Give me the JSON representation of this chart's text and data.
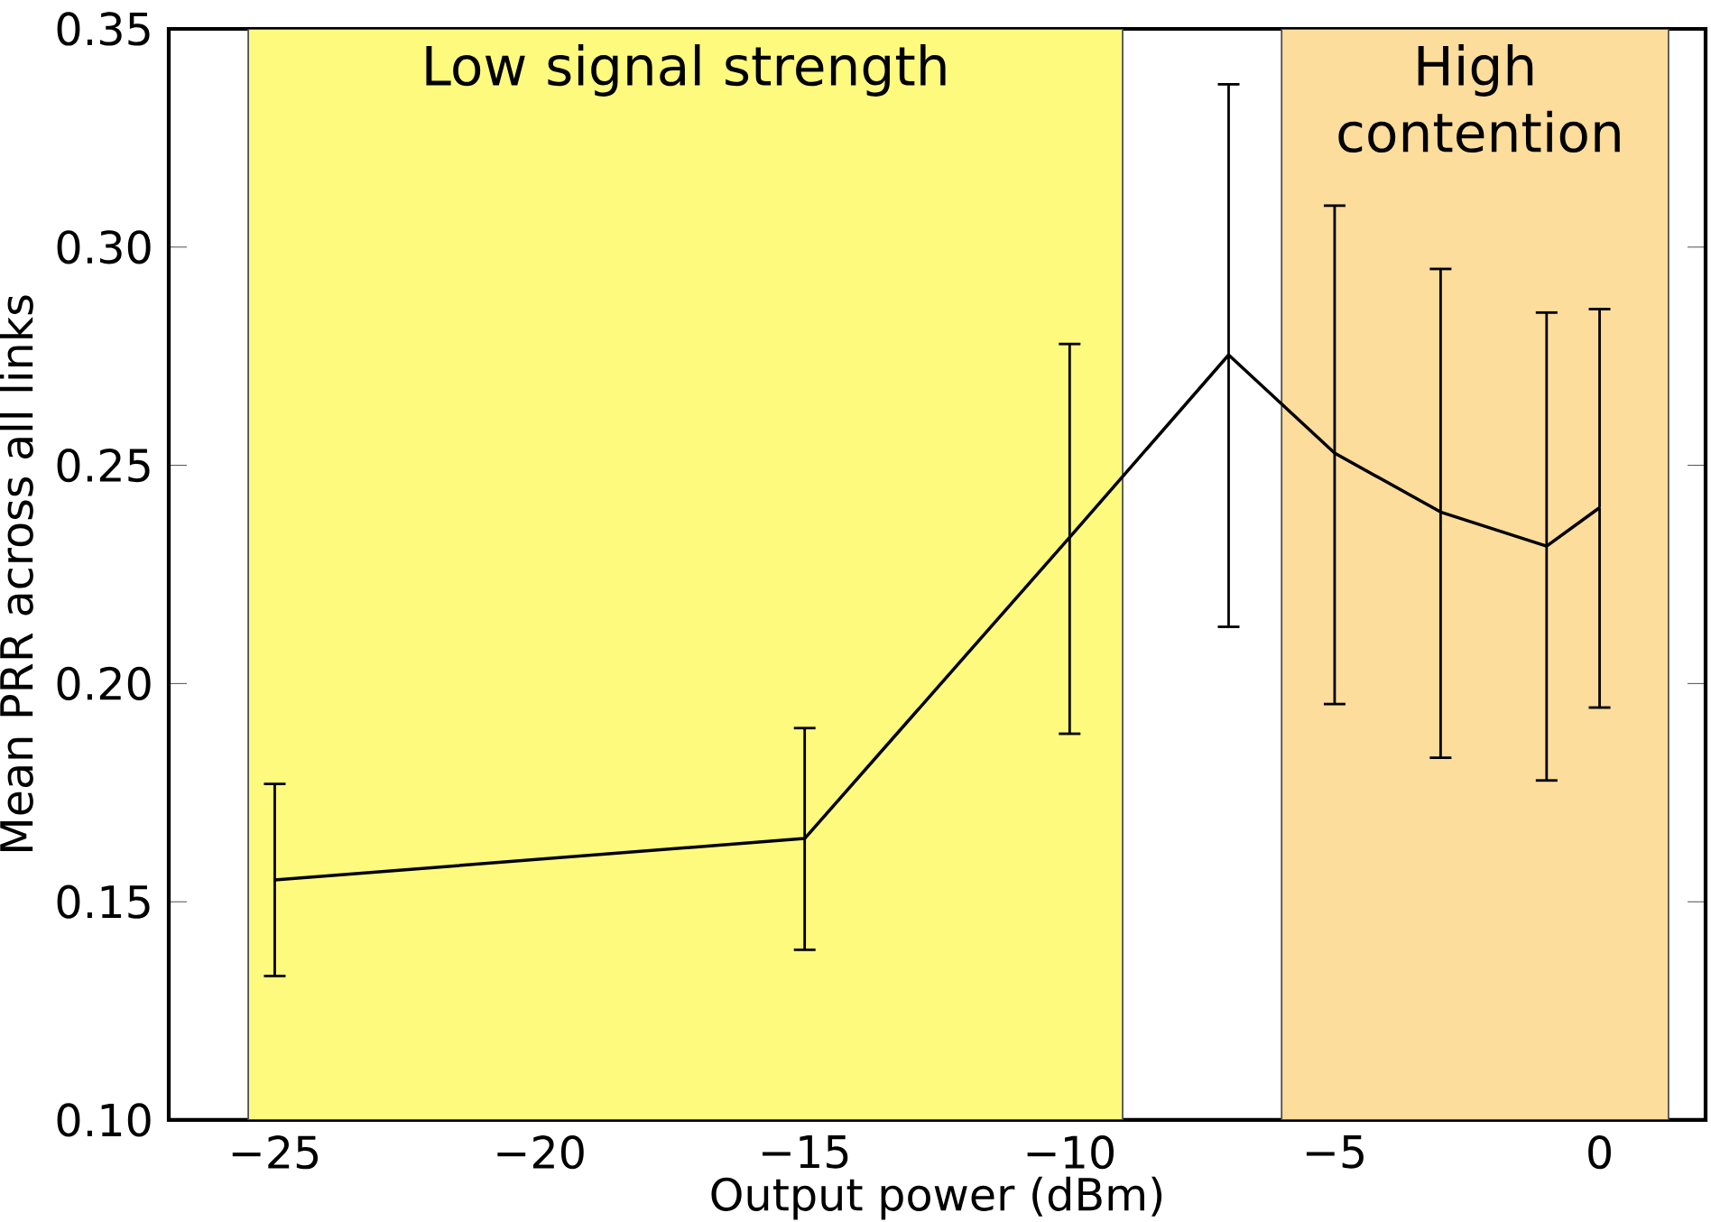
{
  "chart_data": {
    "type": "line",
    "xlabel": "Output power (dBm)",
    "ylabel": "Mean PRR across all links",
    "x": [
      -25,
      -15,
      -10,
      -7,
      -5,
      -3,
      -1,
      0
    ],
    "series": [
      {
        "color": "#000000",
        "values": [
          0.155,
          0.1645,
          0.2335,
          0.2753,
          0.2528,
          0.2393,
          0.2315,
          0.2403
        ],
        "errors": [
          [
            0.133,
            0.177
          ],
          [
            0.139,
            0.1898
          ],
          [
            0.1885,
            0.2778
          ],
          [
            0.213,
            0.3373
          ],
          [
            0.1953,
            0.3095
          ],
          [
            0.183,
            0.295
          ],
          [
            0.1778,
            0.285
          ],
          [
            0.1945,
            0.2858
          ]
        ]
      }
    ],
    "xlim": [
      -27,
      2
    ],
    "ylim": [
      0.1,
      0.35
    ],
    "xticks": [
      {
        "value": -25,
        "label": "−25"
      },
      {
        "value": -20,
        "label": "−20"
      },
      {
        "value": -15,
        "label": "−15"
      },
      {
        "value": -10,
        "label": "−10"
      },
      {
        "value": -5,
        "label": "−5"
      },
      0
    ],
    "yticks": [
      {
        "value": 0.1,
        "label": "0.10"
      },
      0.15,
      {
        "value": 0.2,
        "label": "0.20"
      },
      0.25,
      {
        "value": 0.3,
        "label": "0.30"
      },
      0.35
    ],
    "bands": [
      {
        "axis": "x",
        "from": -25.5,
        "to": -9,
        "label": "Low signal strength",
        "color": "#fefa7e"
      },
      {
        "axis": "x",
        "from": -6,
        "to": 1.3,
        "label": "High contention",
        "color": "#fcdd9b"
      }
    ],
    "grid": false,
    "marker": "none",
    "line_style": "solid"
  }
}
